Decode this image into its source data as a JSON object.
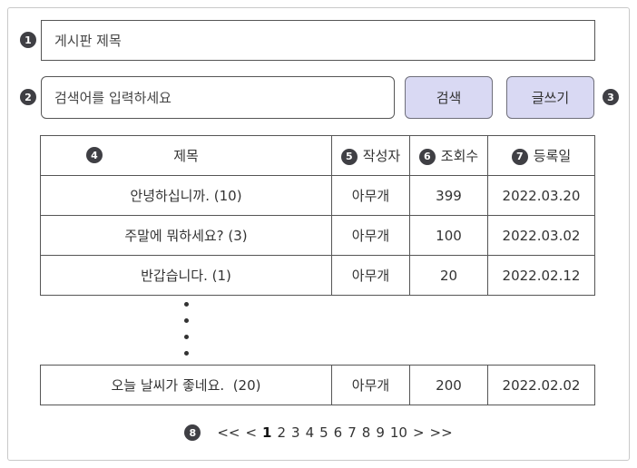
{
  "badges": [
    "1",
    "2",
    "3",
    "4",
    "5",
    "6",
    "7",
    "8"
  ],
  "board_title": {
    "value": "게시판 제목"
  },
  "search": {
    "placeholder": "검색어를 입력하세요",
    "button_label": "검색"
  },
  "write_button": {
    "label": "글쓰기"
  },
  "table": {
    "headers": {
      "title": "제목",
      "author": "작성자",
      "views": "조회수",
      "date": "등록일"
    },
    "rows": [
      {
        "title": "안녕하십니까. (10)",
        "author": "아무개",
        "views": "399",
        "date": "2022.03.20"
      },
      {
        "title": "주말에 뭐하세요? (3)",
        "author": "아무개",
        "views": "100",
        "date": "2022.03.02"
      },
      {
        "title": "반갑습니다. (1)",
        "author": "아무개",
        "views": "20",
        "date": "2022.02.12"
      }
    ],
    "last_row": {
      "title": "오늘 날씨가 좋네요.  (20)",
      "author": "아무개",
      "views": "200",
      "date": "2022.02.02"
    }
  },
  "pagination": {
    "first": "<<",
    "prev": "<",
    "pages": [
      "1",
      "2",
      "3",
      "4",
      "5",
      "6",
      "7",
      "8",
      "9",
      "10"
    ],
    "current": "1",
    "next": ">",
    "last": ">>"
  }
}
